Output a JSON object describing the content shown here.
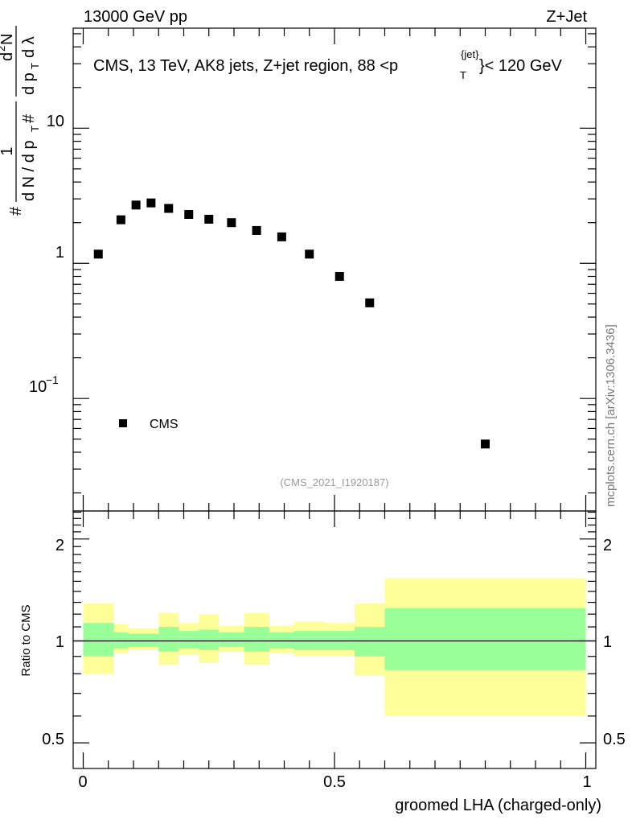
{
  "header": {
    "energy": "13000 GeV pp",
    "process": "Z+Jet"
  },
  "side_credit": "mcplots.cern.ch [arXiv:1306.3436]",
  "chart_data": [
    {
      "type": "scatter",
      "panel": "main",
      "title": "CMS, 13 TeV, AK8 jets, Z+jet region, 88 <p",
      "title_super": "{jet}",
      "title_sub": "T",
      "title_tail": "}< 120 GeV",
      "ylabel": "# (1/dN/dp_T#) d²N/dp_T dλ",
      "yscale": "log",
      "ylim": [
        0.0147,
        55
      ],
      "xlim": [
        -0.02,
        1.02
      ],
      "ytick_labels": [
        "10",
        "1"
      ],
      "ytick_exp_base": "10",
      "ytick_exp_power": "−1",
      "ytick_values": [
        10,
        1,
        0.1
      ],
      "legend": {
        "label": "CMS",
        "placement": "bottom-left"
      },
      "watermark": "(CMS_2021_I1920187)",
      "series": [
        {
          "name": "CMS",
          "x": [
            0.03,
            0.075,
            0.105,
            0.135,
            0.17,
            0.21,
            0.25,
            0.295,
            0.345,
            0.395,
            0.45,
            0.51,
            0.57,
            0.8
          ],
          "y": [
            1.17,
            2.1,
            2.7,
            2.8,
            2.55,
            2.3,
            2.12,
            2.0,
            1.75,
            1.57,
            1.17,
            0.8,
            0.51,
            0.046
          ]
        }
      ]
    },
    {
      "type": "area",
      "panel": "ratio",
      "ylabel": "Ratio to CMS",
      "xlabel": "groomed LHA (charged-only)",
      "yscale": "log",
      "ylim": [
        0.42,
        2.42
      ],
      "xlim": [
        -0.02,
        1.02
      ],
      "ytick_labels": [
        "2",
        "1",
        "0.5"
      ],
      "ytick_values": [
        2,
        1,
        0.5
      ],
      "xtick_labels": [
        "0",
        "0.5",
        "1"
      ],
      "xtick_values": [
        0,
        0.5,
        1
      ],
      "reference_line": 1,
      "colors": {
        "inner": "#99ff99",
        "outer": "#ffff99"
      },
      "bins": [
        {
          "lo": 0.0,
          "hi": 0.06,
          "inner": [
            0.9,
            1.13
          ],
          "outer": [
            0.8,
            1.29
          ]
        },
        {
          "lo": 0.06,
          "hi": 0.09,
          "inner": [
            0.95,
            1.06
          ],
          "outer": [
            0.92,
            1.12
          ]
        },
        {
          "lo": 0.09,
          "hi": 0.12,
          "inner": [
            0.96,
            1.05
          ],
          "outer": [
            0.94,
            1.09
          ]
        },
        {
          "lo": 0.12,
          "hi": 0.15,
          "inner": [
            0.96,
            1.05
          ],
          "outer": [
            0.94,
            1.09
          ]
        },
        {
          "lo": 0.15,
          "hi": 0.19,
          "inner": [
            0.93,
            1.1
          ],
          "outer": [
            0.85,
            1.21
          ]
        },
        {
          "lo": 0.19,
          "hi": 0.23,
          "inner": [
            0.95,
            1.07
          ],
          "outer": [
            0.91,
            1.13
          ]
        },
        {
          "lo": 0.23,
          "hi": 0.27,
          "inner": [
            0.94,
            1.08
          ],
          "outer": [
            0.86,
            1.2
          ]
        },
        {
          "lo": 0.27,
          "hi": 0.32,
          "inner": [
            0.96,
            1.06
          ],
          "outer": [
            0.93,
            1.11
          ]
        },
        {
          "lo": 0.32,
          "hi": 0.37,
          "inner": [
            0.93,
            1.1
          ],
          "outer": [
            0.85,
            1.21
          ]
        },
        {
          "lo": 0.37,
          "hi": 0.42,
          "inner": [
            0.95,
            1.06
          ],
          "outer": [
            0.92,
            1.11
          ]
        },
        {
          "lo": 0.42,
          "hi": 0.48,
          "inner": [
            0.94,
            1.07
          ],
          "outer": [
            0.9,
            1.14
          ]
        },
        {
          "lo": 0.48,
          "hi": 0.54,
          "inner": [
            0.94,
            1.07
          ],
          "outer": [
            0.9,
            1.13
          ]
        },
        {
          "lo": 0.54,
          "hi": 0.6,
          "inner": [
            0.9,
            1.1
          ],
          "outer": [
            0.79,
            1.29
          ]
        },
        {
          "lo": 0.6,
          "hi": 1.0,
          "inner": [
            0.82,
            1.25
          ],
          "outer": [
            0.6,
            1.53
          ]
        }
      ]
    }
  ]
}
